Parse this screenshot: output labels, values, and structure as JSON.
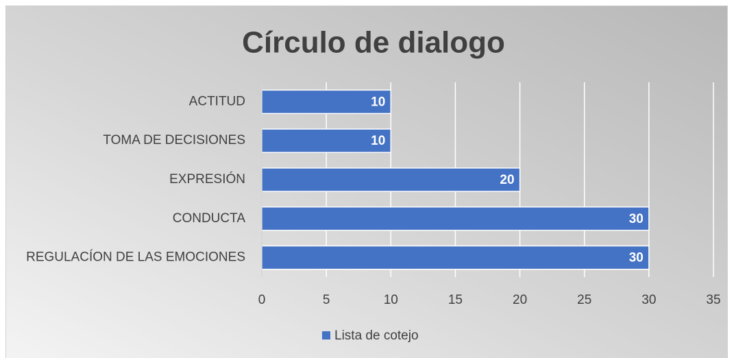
{
  "chart_data": {
    "type": "bar",
    "orientation": "horizontal",
    "title": "Círculo de dialogo",
    "categories": [
      "ACTITUD",
      "TOMA DE DECISIONES",
      "EXPRESIÓN",
      "CONDUCTA",
      "REGULACÍON DE LAS EMOCIONES"
    ],
    "series": [
      {
        "name": "Lista de cotejo",
        "color": "#4472c4",
        "values": [
          10,
          10,
          20,
          30,
          30
        ]
      }
    ],
    "xlim": [
      0,
      35
    ],
    "xticks": [
      0,
      5,
      10,
      15,
      20,
      25,
      30,
      35
    ],
    "grid": true,
    "legend": "bottom",
    "data_labels": true
  }
}
